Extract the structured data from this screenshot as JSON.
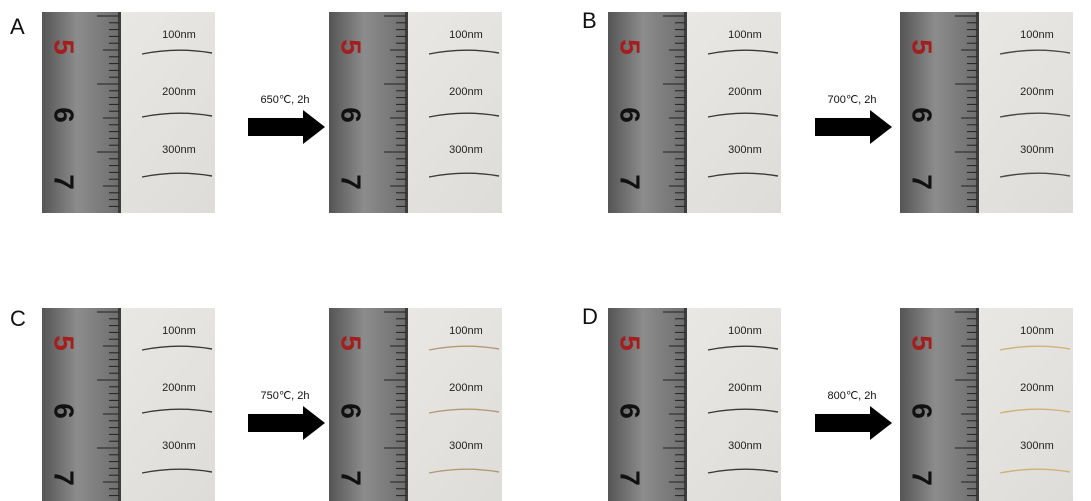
{
  "panels": [
    {
      "letter": "A",
      "condition": "650℃, 2h",
      "before": {
        "ruler": [
          "5",
          "6",
          "7"
        ],
        "labels": [
          "100nm",
          "200nm",
          "300nm"
        ],
        "wire_color": "#3a3a3a"
      },
      "after": {
        "ruler": [
          "5",
          "6",
          "7"
        ],
        "labels": [
          "100nm",
          "200nm",
          "300nm"
        ],
        "wire_color": "#3a3a3a"
      }
    },
    {
      "letter": "B",
      "condition": "700℃, 2h",
      "before": {
        "ruler": [
          "5",
          "6",
          "7"
        ],
        "labels": [
          "100nm",
          "200nm",
          "300nm"
        ],
        "wire_color": "#3a3a3a"
      },
      "after": {
        "ruler": [
          "5",
          "6",
          "7"
        ],
        "labels": [
          "100nm",
          "200nm",
          "300nm"
        ],
        "wire_color": "#4a4a4a"
      }
    },
    {
      "letter": "C",
      "condition": "750℃, 2h",
      "before": {
        "ruler": [
          "5",
          "6",
          "7"
        ],
        "labels": [
          "100nm",
          "200nm",
          "300nm"
        ],
        "wire_color": "#3a3a3a"
      },
      "after": {
        "ruler": [
          "5",
          "6",
          "7"
        ],
        "labels": [
          "100nm",
          "200nm",
          "300nm"
        ],
        "wire_color": "#b39a74"
      }
    },
    {
      "letter": "D",
      "condition": "800℃, 2h",
      "before": {
        "ruler": [
          "5",
          "6",
          "7"
        ],
        "labels": [
          "100nm",
          "200nm",
          "300nm"
        ],
        "wire_color": "#3a3a3a"
      },
      "after": {
        "ruler": [
          "5",
          "6",
          "7"
        ],
        "labels": [
          "100nm",
          "200nm",
          "300nm"
        ],
        "wire_color": "#d2b27a"
      }
    }
  ]
}
